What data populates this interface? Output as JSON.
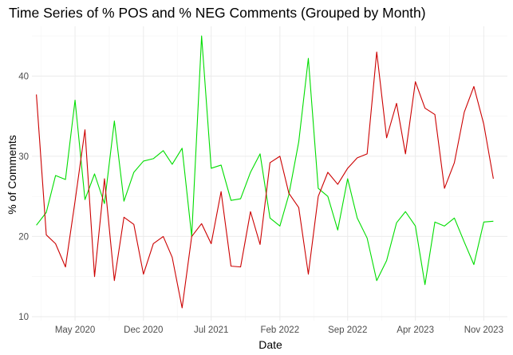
{
  "chart_data": {
    "type": "line",
    "title": "Time Series of % POS and % NEG Comments (Grouped by Month)",
    "xlabel": "Date",
    "ylabel": "% of Comments",
    "x_ticks": [
      "2020-05-01",
      "2020-12-01",
      "2021-07-01",
      "2022-02-01",
      "2022-09-01",
      "2023-04-01",
      "2023-11-01"
    ],
    "x_tick_labels": [
      "May 2020",
      "Dec 2020",
      "Jul 2021",
      "Feb 2022",
      "Sep 2022",
      "Apr 2023",
      "Nov 2023"
    ],
    "y_ticks": [
      10,
      20,
      30,
      40
    ],
    "xlim": [
      "2019-12-18",
      "2024-01-14"
    ],
    "ylim": [
      9.5,
      46.2
    ],
    "grid": true,
    "legend": "none",
    "x": [
      "2020-01-01",
      "2020-02-01",
      "2020-03-01",
      "2020-04-01",
      "2020-05-01",
      "2020-06-01",
      "2020-07-01",
      "2020-08-01",
      "2020-09-01",
      "2020-10-01",
      "2020-11-01",
      "2020-12-01",
      "2021-01-01",
      "2021-02-01",
      "2021-03-01",
      "2021-04-01",
      "2021-05-01",
      "2021-06-01",
      "2021-07-01",
      "2021-08-01",
      "2021-09-01",
      "2021-10-01",
      "2021-11-01",
      "2021-12-01",
      "2022-01-01",
      "2022-02-01",
      "2022-03-01",
      "2022-04-01",
      "2022-05-01",
      "2022-06-01",
      "2022-07-01",
      "2022-08-01",
      "2022-09-01",
      "2022-10-01",
      "2022-11-01",
      "2022-12-01",
      "2023-01-01",
      "2023-02-01",
      "2023-03-01",
      "2023-04-01",
      "2023-05-01",
      "2023-06-01",
      "2023-07-01",
      "2023-08-01",
      "2023-09-01",
      "2023-10-01",
      "2023-11-01",
      "2023-12-01"
    ],
    "series": [
      {
        "color": "#00dd00",
        "values": [
          21.4,
          23.0,
          27.6,
          27.1,
          37.0,
          24.6,
          27.8,
          24.1,
          34.4,
          24.4,
          28.0,
          29.4,
          29.7,
          30.7,
          29.0,
          31.0,
          20.0,
          45.0,
          28.5,
          28.9,
          24.5,
          24.7,
          28.0,
          30.3,
          22.3,
          21.3,
          25.2,
          31.8,
          42.2,
          26.0,
          25.0,
          20.8,
          27.2,
          22.3,
          19.8,
          14.5,
          17.0,
          21.7,
          23.1,
          21.3,
          14.0,
          21.8,
          21.3,
          22.3,
          19.3,
          16.5,
          21.8,
          21.9
        ]
      },
      {
        "color": "#cc0000",
        "values": [
          37.7,
          20.2,
          19.1,
          16.2,
          24.4,
          33.3,
          15.0,
          27.2,
          14.5,
          22.4,
          21.5,
          15.3,
          19.1,
          20.0,
          17.4,
          11.1,
          20.0,
          21.6,
          19.1,
          25.6,
          16.3,
          16.2,
          23.1,
          19.0,
          29.2,
          30.0,
          25.4,
          23.6,
          15.3,
          25.0,
          28.0,
          26.5,
          28.5,
          29.8,
          30.3,
          43.0,
          32.3,
          36.6,
          30.3,
          39.3,
          36.0,
          35.2,
          26.0,
          29.2,
          35.5,
          38.7,
          34.0,
          27.2
        ]
      }
    ]
  }
}
